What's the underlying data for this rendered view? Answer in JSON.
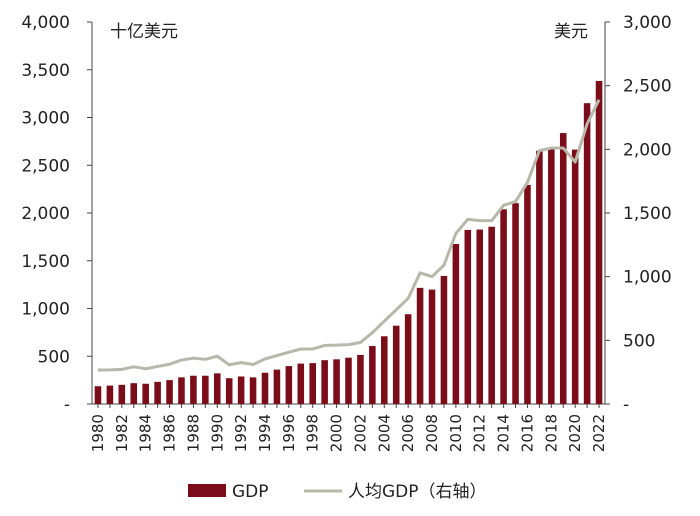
{
  "chart_data": {
    "type": "bar+line",
    "x": [
      "1980",
      "1981",
      "1982",
      "1983",
      "1984",
      "1985",
      "1986",
      "1987",
      "1988",
      "1989",
      "1990",
      "1991",
      "1992",
      "1993",
      "1994",
      "1995",
      "1996",
      "1997",
      "1998",
      "1999",
      "2000",
      "2001",
      "2002",
      "2003",
      "2004",
      "2005",
      "2006",
      "2007",
      "2008",
      "2009",
      "2010",
      "2011",
      "2012",
      "2013",
      "2014",
      "2015",
      "2016",
      "2017",
      "2018",
      "2019",
      "2020",
      "2021",
      "2022"
    ],
    "x_tick_labels": [
      "1980",
      "1982",
      "1984",
      "1986",
      "1988",
      "1990",
      "1992",
      "1994",
      "1996",
      "1998",
      "2000",
      "2002",
      "2004",
      "2006",
      "2008",
      "2010",
      "2012",
      "2014",
      "2016",
      "2018",
      "2020",
      "2022"
    ],
    "left_axis": {
      "unit_label": "十亿美元",
      "range": [
        0,
        4000
      ],
      "ticks": [
        0,
        500,
        1000,
        1500,
        2000,
        2500,
        3000,
        3500,
        4000
      ],
      "tick_labels": [
        "-",
        "500",
        "1,000",
        "1,500",
        "2,000",
        "2,500",
        "3,000",
        "3,500",
        "4,000"
      ]
    },
    "right_axis": {
      "unit_label": "美元",
      "range": [
        0,
        3000
      ],
      "ticks": [
        0,
        500,
        1000,
        1500,
        2000,
        2500,
        3000
      ],
      "tick_labels": [
        "-",
        "500",
        "1,000",
        "1,500",
        "2,000",
        "2,500",
        "3,000"
      ]
    },
    "series": [
      {
        "name": "GDP",
        "type": "bar",
        "axis": "left",
        "color": "#7b0d1a",
        "values": [
          186,
          193,
          201,
          218,
          212,
          232,
          250,
          279,
          296,
          296,
          321,
          270,
          288,
          279,
          327,
          360,
          397,
          423,
          428,
          459,
          468,
          485,
          514,
          607,
          709,
          820,
          940,
          1216,
          1198,
          1341,
          1676,
          1823,
          1827,
          1856,
          2039,
          2103,
          2294,
          2651,
          2676,
          2837,
          2664,
          3150,
          3383
        ]
      },
      {
        "name": "人均GDP（右轴）",
        "type": "line",
        "axis": "right",
        "color": "#b7b8aa",
        "values": [
          267,
          268,
          272,
          292,
          277,
          295,
          312,
          345,
          360,
          351,
          375,
          308,
          325,
          310,
          354,
          380,
          407,
          432,
          432,
          460,
          462,
          466,
          483,
          560,
          650,
          740,
          830,
          1030,
          1000,
          1090,
          1340,
          1450,
          1440,
          1440,
          1560,
          1590,
          1740,
          1990,
          2010,
          2010,
          1900,
          2200,
          2390
        ]
      }
    ],
    "grid": false,
    "legend": {
      "position": "bottom-center",
      "entries": [
        "GDP",
        "人均GDP（右轴）"
      ]
    }
  }
}
